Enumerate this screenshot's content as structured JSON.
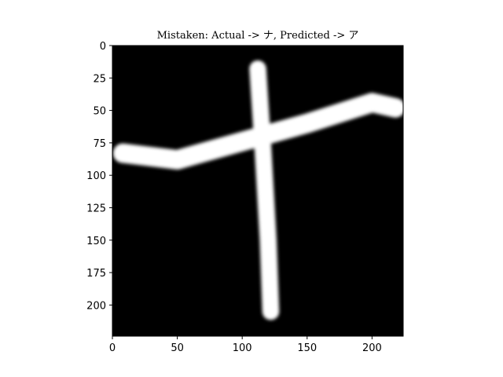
{
  "chart_data": {
    "type": "heatmap",
    "title": "Mistaken: Actual -> ナ, Predicted -> ア",
    "xlabel": "",
    "ylabel": "",
    "xlim": [
      0,
      224
    ],
    "ylim": [
      224,
      0
    ],
    "x_ticks": [
      0,
      50,
      100,
      150,
      200
    ],
    "y_ticks": [
      0,
      25,
      50,
      75,
      100,
      125,
      150,
      175,
      200
    ],
    "colormap": "gray",
    "background_value": 0,
    "strokes": [
      {
        "name": "vertical-stroke",
        "points": [
          [
            112,
            18
          ],
          [
            116,
            80
          ],
          [
            120,
            150
          ],
          [
            122,
            205
          ]
        ],
        "width": 13,
        "value": 1
      },
      {
        "name": "horizontal-stroke",
        "points": [
          [
            8,
            83
          ],
          [
            50,
            88
          ],
          [
            100,
            74
          ],
          [
            150,
            60
          ],
          [
            200,
            44
          ],
          [
            218,
            48
          ]
        ],
        "width": 15,
        "value": 1
      }
    ]
  }
}
